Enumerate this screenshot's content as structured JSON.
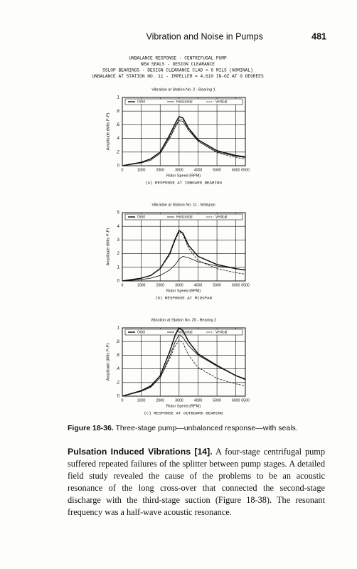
{
  "header": {
    "title": "Vibration and Noise in Pumps",
    "page": "481"
  },
  "heading_lines": [
    "UNBALANCE RESPONSE - CENTRIFUGAL PUMP",
    "NEW SEALS - DESIGN CLEARANCE",
    "SSLOP BEARINGS - DESIGN CLEARANCE  CLAD = 6 MILS (NOMINAL)",
    "UNBALANCE AT STATION NO. 11 - IMPELLER = 4.610 IN-OZ AT 0 DEGREES"
  ],
  "chart_data": [
    {
      "type": "line",
      "title": "Vibration at Station No.   2 - Bearing 1",
      "xlabel": "Rotor Speed (RPM)",
      "ylabel": "Amplitude (Mils P-P)",
      "caption": "(a) RESPONSE AT INBOARD BEARING",
      "x": [
        0,
        1000,
        1500,
        2000,
        2500,
        2800,
        3000,
        3200,
        3500,
        4000,
        5000,
        6000,
        6500
      ],
      "series": [
        {
          "name": "Orbit",
          "color": "#111111",
          "dash": false,
          "values": [
            0,
            0.05,
            0.1,
            0.2,
            0.45,
            0.62,
            0.72,
            0.7,
            0.55,
            0.38,
            0.22,
            0.15,
            0.13
          ]
        },
        {
          "name": "Horizontal",
          "color": "#111111",
          "dash": false,
          "values": [
            0,
            0.04,
            0.08,
            0.18,
            0.4,
            0.57,
            0.66,
            0.65,
            0.52,
            0.36,
            0.2,
            0.14,
            0.12
          ]
        },
        {
          "name": "Vertical",
          "color": "#111111",
          "dash": true,
          "values": [
            0,
            0.05,
            0.1,
            0.2,
            0.42,
            0.58,
            0.68,
            0.68,
            0.54,
            0.36,
            0.19,
            0.12,
            0.1
          ]
        }
      ],
      "xlim": [
        0,
        6500
      ],
      "xticks": [
        0,
        1000,
        2000,
        3000,
        4000,
        5000,
        6000,
        6500
      ],
      "ylim": [
        0,
        1
      ],
      "yticks": [
        0,
        {
          "value": 0.2,
          "label": ".2"
        },
        {
          "value": 0.4,
          "label": ".4"
        },
        {
          "value": 0.6,
          "label": ".6"
        },
        {
          "value": 0.8,
          "label": ".8"
        },
        1
      ],
      "grid": true
    },
    {
      "type": "line",
      "title": "Vibration at Station No.   11 - Midspan",
      "xlabel": "Rotor Speed (RPM)",
      "ylabel": "Amplitude (Mils P-P)",
      "caption": "(b) RESPONSE AT MIDSPAN",
      "x": [
        0,
        1000,
        1500,
        2000,
        2500,
        2800,
        3000,
        3200,
        3500,
        4000,
        5000,
        6000,
        6500
      ],
      "series": [
        {
          "name": "Orbit",
          "color": "#111111",
          "dash": false,
          "values": [
            0,
            0.2,
            0.4,
            0.9,
            2.0,
            3.1,
            3.7,
            3.5,
            2.6,
            1.8,
            1.2,
            0.9,
            0.8
          ]
        },
        {
          "name": "Horizontal",
          "color": "#111111",
          "dash": false,
          "values": [
            0,
            0.1,
            0.2,
            0.4,
            0.8,
            1.2,
            1.6,
            1.8,
            1.7,
            1.4,
            1.1,
            0.9,
            0.8
          ]
        },
        {
          "name": "Vertical",
          "color": "#111111",
          "dash": true,
          "values": [
            0,
            0.2,
            0.4,
            0.9,
            1.9,
            3.0,
            3.6,
            3.4,
            2.4,
            1.5,
            0.9,
            0.6,
            0.5
          ]
        }
      ],
      "xlim": [
        0,
        6500
      ],
      "xticks": [
        0,
        1000,
        2000,
        3000,
        4000,
        5000,
        6000,
        6500
      ],
      "ylim": [
        0,
        5
      ],
      "yticks": [
        0,
        1,
        2,
        3,
        4,
        5
      ],
      "grid": true
    },
    {
      "type": "line",
      "title": "Vibration at Station No.   20 - Bearing 2",
      "xlabel": "Rotor Speed (RPM)",
      "ylabel": "Amplitude (Mils P-P)",
      "caption": "(c) RESPONSE AT OUTBOARD BEARING",
      "x": [
        0,
        1000,
        1500,
        2000,
        2500,
        2800,
        3000,
        3200,
        3500,
        4000,
        5000,
        6000,
        6500
      ],
      "series": [
        {
          "name": "Orbit",
          "color": "#111111",
          "dash": false,
          "values": [
            0,
            0.08,
            0.15,
            0.3,
            0.65,
            0.9,
            1.0,
            0.96,
            0.8,
            0.62,
            0.45,
            0.3,
            0.25
          ]
        },
        {
          "name": "Horizontal",
          "color": "#111111",
          "dash": false,
          "values": [
            0,
            0.07,
            0.13,
            0.27,
            0.58,
            0.8,
            0.9,
            0.86,
            0.74,
            0.6,
            0.44,
            0.3,
            0.24
          ]
        },
        {
          "name": "Vertical",
          "color": "#111111",
          "dash": true,
          "values": [
            0,
            0.08,
            0.14,
            0.27,
            0.55,
            0.74,
            0.82,
            0.78,
            0.6,
            0.42,
            0.26,
            0.18,
            0.15
          ]
        }
      ],
      "xlim": [
        0,
        6500
      ],
      "xticks": [
        0,
        1000,
        2000,
        3000,
        4000,
        5000,
        6000,
        6500
      ],
      "ylim": [
        0,
        1
      ],
      "yticks": [
        0,
        {
          "value": 0.2,
          "label": ".2"
        },
        {
          "value": 0.4,
          "label": ".4"
        },
        {
          "value": 0.6,
          "label": ".6"
        },
        {
          "value": 0.8,
          "label": ".8"
        },
        1
      ],
      "grid": true
    }
  ],
  "figure": {
    "label": "Figure 18-36.",
    "text": "Three-stage pump—unbalanced response—with seals."
  },
  "paragraph": {
    "lead": "Pulsation Induced Vibrations [14].",
    "text": "A four-stage centrifugal pump suffered repeated failures of the splitter between pump stages. A detailed field study revealed the cause of the problems to be an acoustic resonance of the long cross-over that connected the second-stage discharge with the third-stage suction (Figure 18-38). The resonant frequency was a half-wave acoustic resonance."
  }
}
